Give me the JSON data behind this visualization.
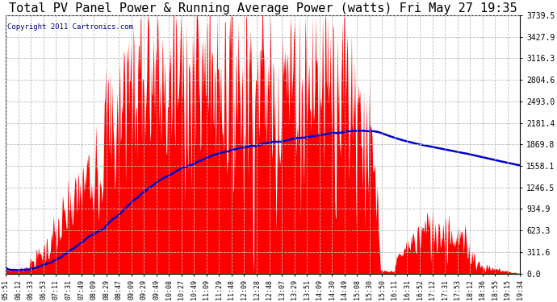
{
  "title": "Total PV Panel Power & Running Average Power (watts) Fri May 27 19:35",
  "copyright": "Copyright 2011 Cartronics.com",
  "background_color": "#ffffff",
  "plot_bg_color": "#ffffff",
  "grid_color": "#bbbbbb",
  "fill_color": "#ff0000",
  "line_color": "#0000cc",
  "title_fontsize": 11,
  "ylabel_right": [
    "0.0",
    "311.6",
    "623.3",
    "934.9",
    "1246.5",
    "1558.1",
    "1869.8",
    "2181.4",
    "2493.0",
    "2804.6",
    "3116.3",
    "3427.9",
    "3739.5"
  ],
  "ytick_values": [
    0.0,
    311.6,
    623.3,
    934.9,
    1246.5,
    1558.1,
    1869.8,
    2181.4,
    2493.0,
    2804.6,
    3116.3,
    3427.9,
    3739.5
  ],
  "ymax": 3739.5,
  "xtick_labels": [
    "05:51",
    "06:12",
    "06:33",
    "06:53",
    "07:11",
    "07:31",
    "07:49",
    "08:09",
    "08:29",
    "08:47",
    "09:09",
    "09:29",
    "09:49",
    "10:08",
    "10:27",
    "10:49",
    "11:09",
    "11:29",
    "11:48",
    "12:09",
    "12:28",
    "12:48",
    "13:07",
    "13:29",
    "13:51",
    "14:09",
    "14:30",
    "14:49",
    "15:08",
    "15:30",
    "15:50",
    "16:11",
    "16:31",
    "16:52",
    "17:12",
    "17:31",
    "17:53",
    "18:12",
    "18:36",
    "18:55",
    "19:15",
    "19:34"
  ]
}
